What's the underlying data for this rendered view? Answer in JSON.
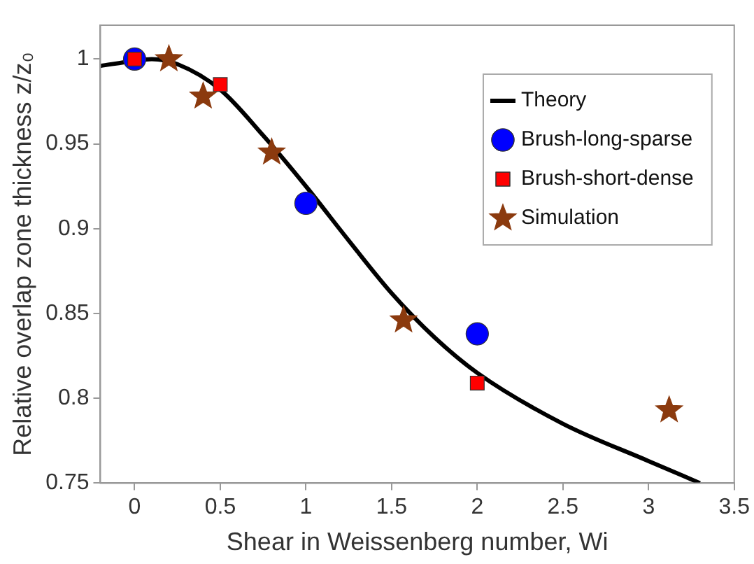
{
  "chart_data": {
    "type": "scatter",
    "xlabel": "Shear in Weissenberg number, Wi",
    "ylabel": "Relative overlap zone thickness z/z₀",
    "xlim": [
      -0.2,
      3.5
    ],
    "xticks": [
      {
        "value": 0,
        "label": "0"
      },
      0.5,
      1,
      1.5,
      2,
      2.5,
      3,
      3.5
    ],
    "ylim": [
      0.75,
      1.02
    ],
    "yticks": [
      0.75,
      0.8,
      0.85,
      0.9,
      0.95,
      1
    ],
    "grid": false,
    "legend": "top right",
    "series": [
      {
        "name": "Theory",
        "type": "line",
        "color": "#000000",
        "marker": "none",
        "line_style": "solid",
        "x": [
          -0.2,
          0,
          0.1,
          0.25,
          0.5,
          0.75,
          1,
          1.25,
          1.5,
          1.75,
          2,
          2.5,
          3,
          3.3
        ],
        "values": [
          0.996,
          0.999,
          1.0,
          0.997,
          0.982,
          0.955,
          0.925,
          0.893,
          0.862,
          0.836,
          0.815,
          0.785,
          0.763,
          0.75
        ]
      },
      {
        "name": "Brush-long-sparse",
        "color": "#0000ff",
        "marker": "circle",
        "x": [
          0,
          1,
          2
        ],
        "values": [
          1,
          0.915,
          0.838
        ]
      },
      {
        "name": "Brush-short-dense",
        "color": "#ff0000",
        "marker": "square",
        "x": [
          0,
          0.5,
          2
        ],
        "values": [
          1,
          0.985,
          0.809
        ]
      },
      {
        "name": "Simulation",
        "color": "#8b3a0e",
        "marker": "star",
        "x": [
          0.2,
          0.4,
          0.8,
          1.57,
          3.12
        ],
        "values": [
          1,
          0.978,
          0.945,
          0.846,
          0.793
        ]
      }
    ]
  }
}
